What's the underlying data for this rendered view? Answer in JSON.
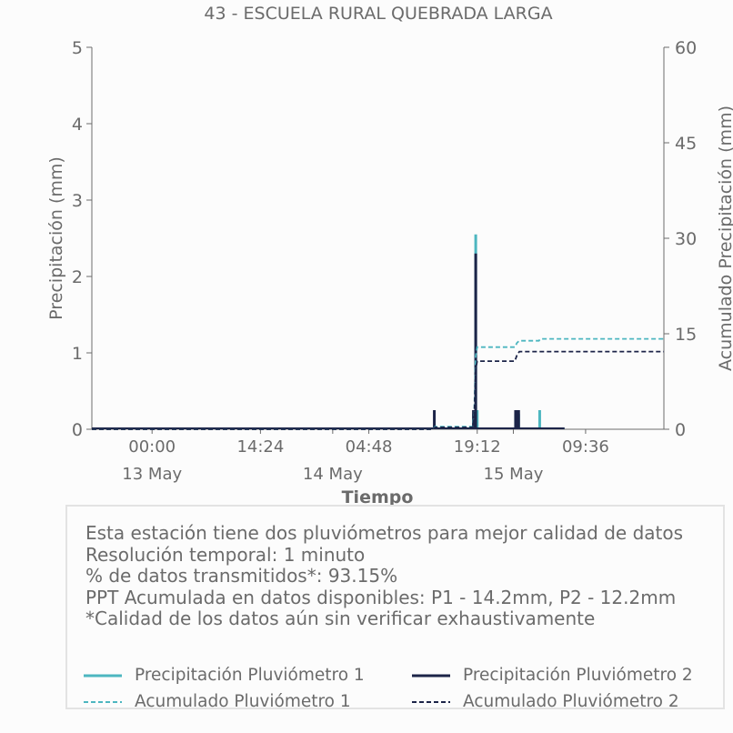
{
  "chart_data": {
    "type": "line",
    "title": "43 - ESCUELA RURAL QUEBRADA LARGA",
    "xlabel": "Tiempo",
    "ylabel": "Precipitación (mm)",
    "ylabel2": "Acumulado Precipitación (mm)",
    "xlim": [
      -8,
      68
    ],
    "ylim": [
      0,
      5
    ],
    "y2lim": [
      0,
      60
    ],
    "yticks": [
      0,
      1,
      2,
      3,
      4,
      5
    ],
    "y2ticks": [
      0,
      15,
      30,
      45,
      60
    ],
    "xticks": [
      {
        "x": 0,
        "label": "00:00",
        "sublabel": "13 May"
      },
      {
        "x": 14.4,
        "label": "14:24",
        "sublabel": ""
      },
      {
        "x": 24,
        "label": "",
        "sublabel": "14 May"
      },
      {
        "x": 28.8,
        "label": "04:48",
        "sublabel": ""
      },
      {
        "x": 43.2,
        "label": "19:12",
        "sublabel": ""
      },
      {
        "x": 48,
        "label": "",
        "sublabel": "15 May"
      },
      {
        "x": 57.6,
        "label": "09:36",
        "sublabel": ""
      }
    ],
    "colors": {
      "p1": "#4db6c0",
      "p2": "#1c2448"
    },
    "series": [
      {
        "name": "Precipitación Pluviómetro 1",
        "axis": "left",
        "style": "bar-spikes",
        "color": "#4db6c0",
        "x": [
          37.5,
          42.7,
          43.0,
          43.2,
          48.3,
          48.5,
          48.7,
          51.5
        ],
        "y": [
          0.05,
          0.2,
          2.55,
          0.25,
          0.2,
          0.2,
          0.2,
          0.25
        ]
      },
      {
        "name": "Precipitación Pluviómetro 2",
        "axis": "left",
        "style": "bar-spikes",
        "color": "#1c2448",
        "x": [
          37.5,
          42.7,
          43.0,
          48.3,
          48.5,
          48.7
        ],
        "y": [
          0.25,
          0.25,
          2.3,
          0.25,
          0.25,
          0.25
        ]
      },
      {
        "name": "Acumulado Pluviómetro 1",
        "axis": "right",
        "style": "dashed",
        "color": "#4db6c0",
        "x": [
          -8,
          37.3,
          37.6,
          42.6,
          42.8,
          43.0,
          43.2,
          48.2,
          48.5,
          48.8,
          51.4,
          51.6,
          68
        ],
        "y": [
          0,
          0,
          0.4,
          0.4,
          2.5,
          11.5,
          12.9,
          12.9,
          13.6,
          13.9,
          13.9,
          14.2,
          14.2
        ]
      },
      {
        "name": "Acumulado Pluviómetro 2",
        "axis": "right",
        "style": "dashed",
        "color": "#1c2448",
        "x": [
          -8,
          37.3,
          37.6,
          42.6,
          42.8,
          43.0,
          43.2,
          48.2,
          48.5,
          48.8,
          68
        ],
        "y": [
          0,
          0,
          0.3,
          0.3,
          1.8,
          9.5,
          10.7,
          10.7,
          11.7,
          12.2,
          12.2
        ]
      }
    ],
    "grid": false,
    "legend_placement": "bottom"
  },
  "info": {
    "lines": [
      "Esta estación tiene dos pluviómetros para mejor calidad de datos",
      "Resolución temporal: 1 minuto",
      "% de datos transmitidos*: 93.15%",
      "PPT Acumulada en datos disponibles: P1 - 14.2mm, P2 - 12.2mm",
      "*Calidad de los datos aún sin verificar exhaustivamente"
    ]
  },
  "legend": {
    "p1_precip": "Precipitación Pluviómetro 1",
    "p2_precip": "Precipitación Pluviómetro 2",
    "p1_acum": "Acumulado Pluviómetro 1",
    "p2_acum": "Acumulado Pluviómetro 2"
  }
}
